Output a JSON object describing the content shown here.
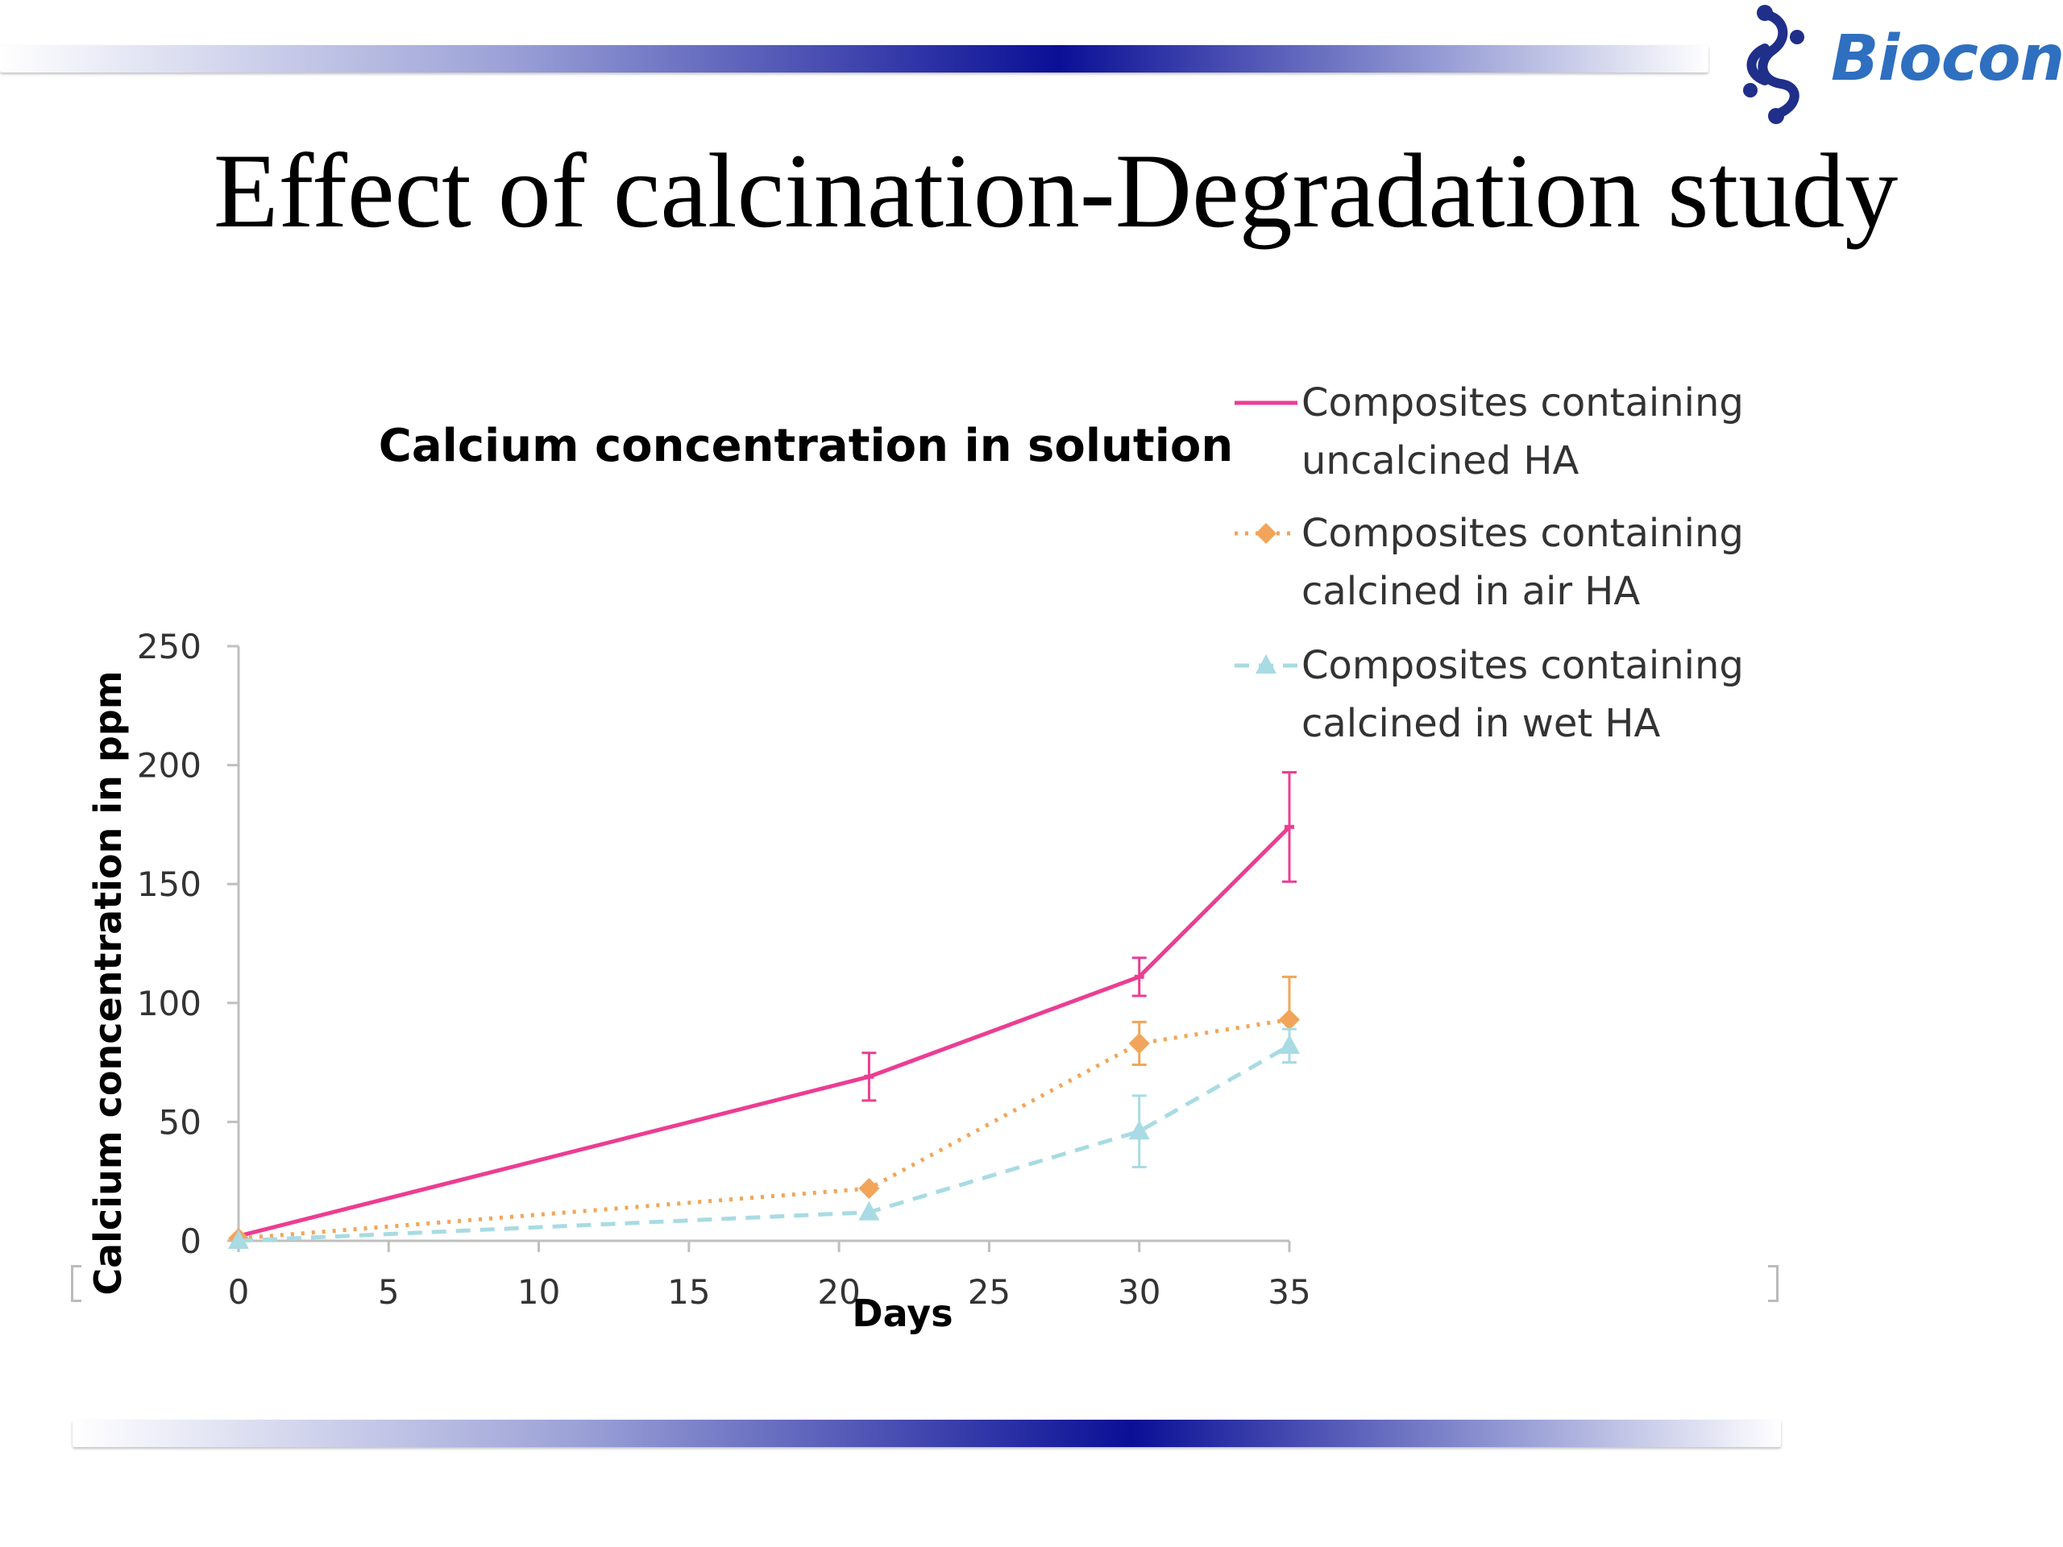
{
  "slide": {
    "title": "Effect of calcination-Degradation study",
    "logo_text": "Biocon",
    "logo_icon": "biocon-molecule-icon"
  },
  "chart_data": {
    "type": "line",
    "title": "Calcium concentration in solution",
    "xlabel": "Days",
    "ylabel": "Calcium concentration in ppm",
    "xlim": [
      0,
      35
    ],
    "ylim": [
      0,
      250
    ],
    "xticks": [
      0,
      5,
      10,
      15,
      20,
      25,
      30,
      35
    ],
    "yticks": [
      0,
      50,
      100,
      150,
      200,
      250
    ],
    "grid": false,
    "legend_position": "top-right",
    "series": [
      {
        "name": "Composites containing uncalcined HA",
        "name_lines": [
          "Composites containing",
          "uncalcined HA"
        ],
        "color": "#ec3d93",
        "line_style": "solid",
        "marker": "dash",
        "x": [
          0,
          21,
          30,
          35
        ],
        "y": [
          2,
          69,
          111,
          174
        ],
        "error": [
          0,
          10,
          8,
          23
        ]
      },
      {
        "name": "Composites containing calcined in air HA",
        "name_lines": [
          "Composites containing",
          "calcined in air HA"
        ],
        "color": "#f2a55a",
        "line_style": "dotted",
        "marker": "diamond",
        "x": [
          0,
          21,
          30,
          35
        ],
        "y": [
          1,
          22,
          83,
          93
        ],
        "error": [
          0,
          0,
          9,
          18
        ]
      },
      {
        "name": "Composites containing calcined in wet HA",
        "name_lines": [
          "Composites containing",
          "calcined in wet HA"
        ],
        "color": "#a8dbe3",
        "line_style": "dashed",
        "marker": "triangle",
        "x": [
          0,
          21,
          30,
          35
        ],
        "y": [
          0,
          12,
          46,
          82
        ],
        "error": [
          0,
          0,
          15,
          7
        ]
      }
    ]
  }
}
